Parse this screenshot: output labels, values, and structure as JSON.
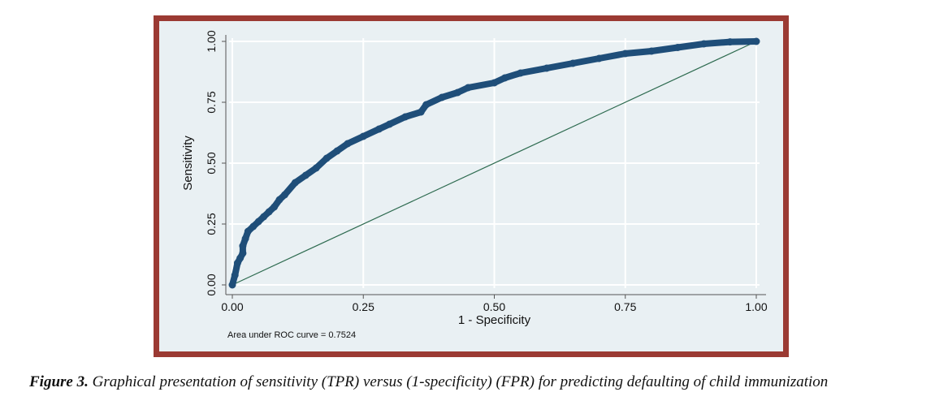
{
  "chart_data": {
    "type": "line",
    "xlabel": "1 - Specificity",
    "ylabel": "Sensitivity",
    "xlim": [
      0,
      1
    ],
    "ylim": [
      0,
      1
    ],
    "grid": true,
    "x_ticks": [
      {
        "value": 0,
        "label": "0.00"
      },
      {
        "value": 0.25,
        "label": "0.25"
      },
      {
        "value": 0.5,
        "label": "0.50"
      },
      {
        "value": 0.75,
        "label": "0.75"
      },
      {
        "value": 1,
        "label": "1.00"
      }
    ],
    "y_ticks": [
      {
        "value": 0,
        "label": "0.00"
      },
      {
        "value": 0.25,
        "label": "0.25"
      },
      {
        "value": 0.5,
        "label": "0.50"
      },
      {
        "value": 0.75,
        "label": "0.75"
      },
      {
        "value": 1,
        "label": "1.00"
      }
    ],
    "annotation": "Area under ROC curve = 0.7524",
    "colors": {
      "roc": "#1f4e79",
      "reference": "#2e6b50",
      "grid": "#ffffff",
      "frame": "#9b3a33",
      "panel": "#e9f0f3"
    },
    "series": [
      {
        "name": "ROC curve",
        "x": [
          0,
          0.005,
          0.01,
          0.015,
          0.02,
          0.02,
          0.025,
          0.03,
          0.04,
          0.05,
          0.06,
          0.07,
          0.08,
          0.09,
          0.1,
          0.12,
          0.14,
          0.16,
          0.18,
          0.2,
          0.22,
          0.25,
          0.28,
          0.3,
          0.33,
          0.36,
          0.37,
          0.4,
          0.43,
          0.45,
          0.5,
          0.52,
          0.55,
          0.6,
          0.65,
          0.7,
          0.75,
          0.8,
          0.85,
          0.9,
          0.95,
          1.0
        ],
        "y": [
          0,
          0.04,
          0.09,
          0.11,
          0.13,
          0.16,
          0.19,
          0.22,
          0.24,
          0.26,
          0.28,
          0.3,
          0.32,
          0.35,
          0.37,
          0.42,
          0.45,
          0.48,
          0.52,
          0.55,
          0.58,
          0.61,
          0.64,
          0.66,
          0.69,
          0.71,
          0.74,
          0.77,
          0.79,
          0.81,
          0.83,
          0.85,
          0.87,
          0.89,
          0.91,
          0.93,
          0.95,
          0.96,
          0.975,
          0.99,
          0.998,
          1.0
        ]
      },
      {
        "name": "Reference line",
        "x": [
          0,
          1
        ],
        "y": [
          0,
          1
        ]
      }
    ]
  },
  "caption": {
    "label": "Figure 3.",
    "text": " Graphical presentation of sensitivity (TPR) versus (1-specificity) (FPR) for predicting defaulting of child immunization"
  }
}
